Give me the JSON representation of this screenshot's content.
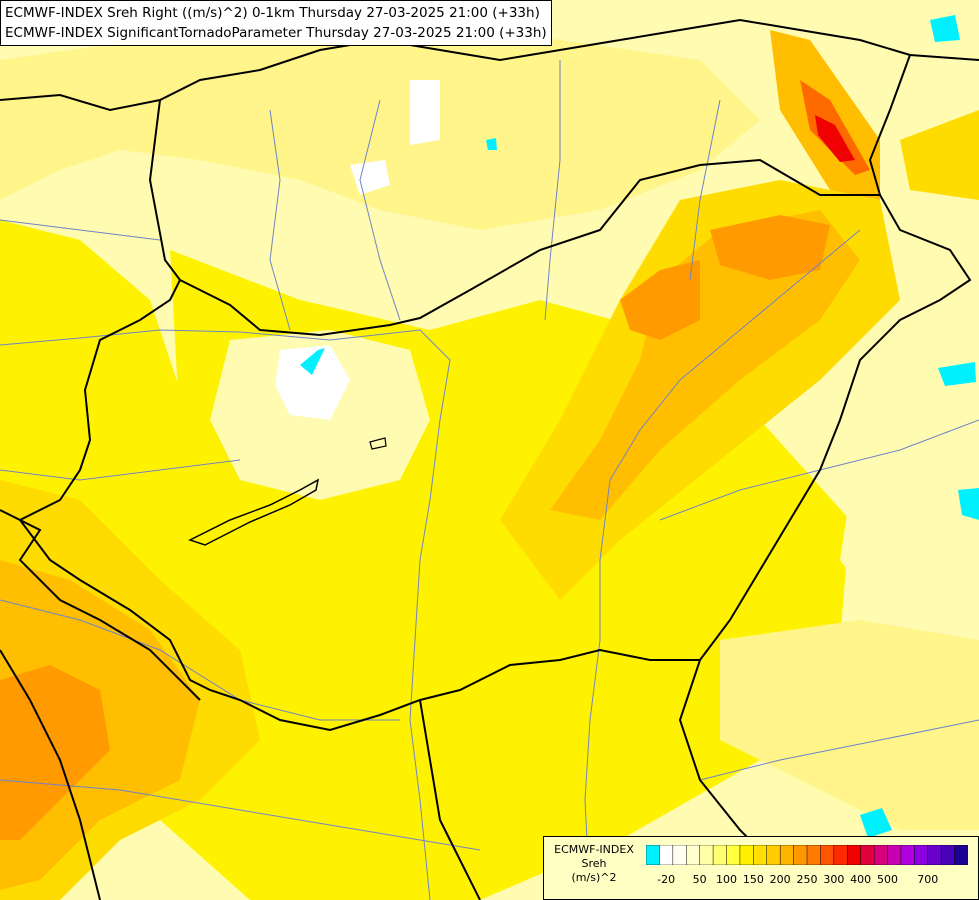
{
  "header": {
    "line1": "ECMWF-INDEX Sreh Right ((m/s)^2) 0-1km Thursday 27-03-2025 21:00 (+33h)",
    "line2": "ECMWF-INDEX SignificantTornadoParameter Thursday 27-03-2025 21:00 (+33h)"
  },
  "legend": {
    "title1": "ECMWF-INDEX",
    "title2": "Sreh",
    "title3": "(m/s)^2",
    "colors": [
      "#00f0ff",
      "#ffffff",
      "#fffff0",
      "#ffffd0",
      "#ffffa8",
      "#ffff70",
      "#ffff3c",
      "#fff000",
      "#ffe000",
      "#ffcc00",
      "#ffb400",
      "#ff9800",
      "#ff7a00",
      "#ff5500",
      "#ff2a00",
      "#f00000",
      "#e0003c",
      "#d8007c",
      "#c800b4",
      "#b000e0",
      "#8c00e0",
      "#6a00cc",
      "#4800b8",
      "#1c0094"
    ],
    "ticks": [
      "-20",
      "50",
      "100",
      "150",
      "200",
      "250",
      "300",
      "400",
      "500",
      "700"
    ]
  },
  "colors": {
    "very_light": "#fffbb0",
    "light": "#fff58a",
    "yellow": "#fff200",
    "deep_yellow": "#ffdc00",
    "orange_light": "#ffbf00",
    "orange": "#ff9a00",
    "orange_dark": "#ff6a00",
    "red": "#f00000",
    "cyan": "#00f0ff",
    "white": "#ffffff",
    "border": "#000000",
    "river": "#6e84c8"
  }
}
